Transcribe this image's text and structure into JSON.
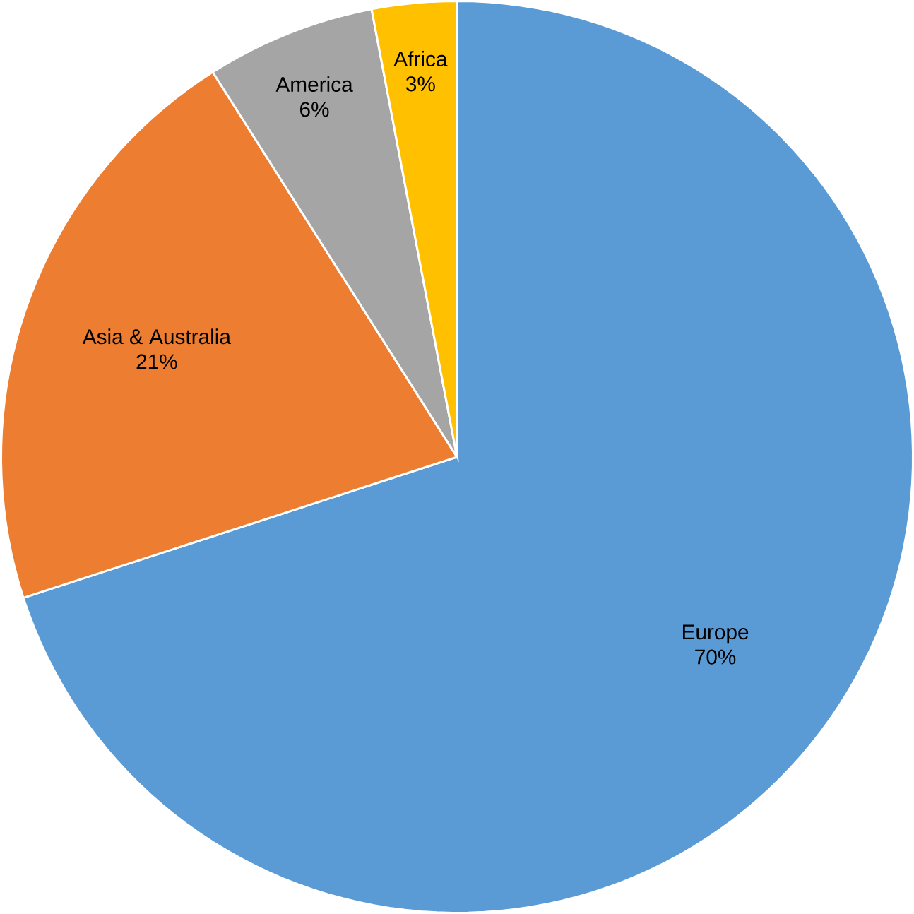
{
  "chart_data": {
    "type": "pie",
    "categories": [
      "Europe",
      "Asia & Australia",
      "America",
      "Africa"
    ],
    "values": [
      70,
      21,
      6,
      3
    ],
    "value_labels": [
      "70%",
      "21%",
      "6%",
      "3%"
    ],
    "colors": [
      "#5b9bd5",
      "#ed7d31",
      "#a5a5a5",
      "#ffc000"
    ]
  }
}
